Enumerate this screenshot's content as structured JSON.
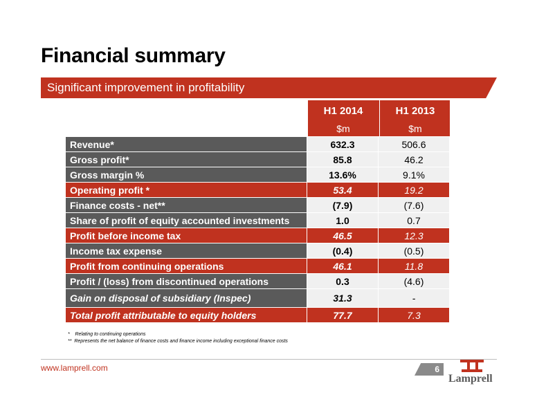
{
  "title": "Financial summary",
  "banner": "Significant improvement in profitability",
  "columns": [
    {
      "year": "H1 2014",
      "unit": "$m"
    },
    {
      "year": "H1 2013",
      "unit": "$m"
    }
  ],
  "rows": [
    {
      "label": "Revenue*",
      "v1": "632.3",
      "v2": "506.6"
    },
    {
      "label": "Gross profit*",
      "v1": "85.8",
      "v2": "46.2"
    },
    {
      "label": "Gross margin %",
      "v1": "13.6%",
      "v2": "9.1%"
    },
    {
      "label": "Operating profit *",
      "v1": "53.4",
      "v2": "19.2"
    },
    {
      "label": "Finance costs - net**",
      "v1": "(7.9)",
      "v2": "(7.6)"
    },
    {
      "label": "Share of profit of equity accounted investments",
      "v1": "1.0",
      "v2": "0.7"
    },
    {
      "label": "Profit before income tax",
      "v1": "46.5",
      "v2": "12.3"
    },
    {
      "label": "Income tax expense",
      "v1": "(0.4)",
      "v2": "(0.5)"
    },
    {
      "label": "Profit from continuing operations",
      "v1": "46.1",
      "v2": "11.8"
    },
    {
      "label": "Profit / (loss) from discontinued operations",
      "v1": "0.3",
      "v2": "(4.6)"
    },
    {
      "label": "Gain on disposal of subsidiary (Inspec)",
      "v1": "31.3",
      "v2": "-"
    },
    {
      "label": "Total profit attributable to equity holders",
      "v1": "77.7",
      "v2": "7.3"
    }
  ],
  "footnotes": [
    "*    Relating to continuing operations",
    "**  Represents the net balance of finance costs and finance income including exceptional finance costs"
  ],
  "footer": {
    "url": "www.lamprell.com",
    "page": "6",
    "logo_text": "Lamprell"
  },
  "colors": {
    "accent": "#c0321f",
    "label_bg": "#5a5a5a",
    "value_bg": "#f0f0f0"
  }
}
